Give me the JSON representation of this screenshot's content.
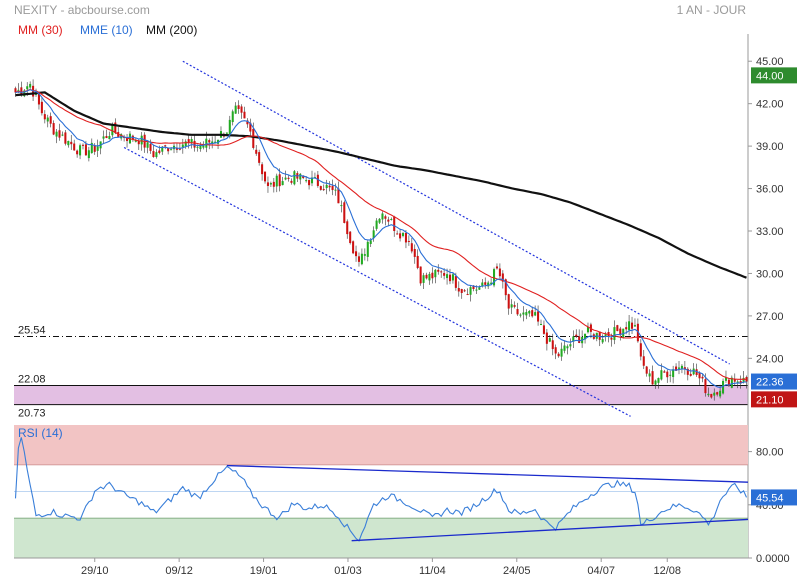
{
  "header": {
    "title": "NEXITY - abcbourse.com",
    "period": "1 AN - JOUR"
  },
  "legend": [
    {
      "label": "MM (30)",
      "color": "#e02020"
    },
    {
      "label": "MME (10)",
      "color": "#2a6fd6"
    },
    {
      "label": "MM (200)",
      "color": "#111111"
    }
  ],
  "colors": {
    "up": "#22aa22",
    "down": "#cc1111",
    "mm30": "#e02020",
    "mme10": "#2a6fd6",
    "mm200": "#111111",
    "channel": "#2233dd",
    "rsi_line": "#3a7fd9",
    "price_badge": "#2a6fd6",
    "upper_badge": "#2e8b2e",
    "lower_badge": "#c01515",
    "support_zone": "#e3bfe3",
    "rsi_over": "#f2c4c4",
    "rsi_under": "#cfe6cf"
  },
  "chart_data": [
    {
      "type": "candlestick",
      "title": "NEXITY",
      "x_tick_labels": [
        "29/10",
        "09/12",
        "19/01",
        "01/03",
        "11/04",
        "24/05",
        "04/07",
        "12/08"
      ],
      "y_tick_labels": [
        "45.00",
        "42.00",
        "39.00",
        "36.00",
        "33.00",
        "30.00",
        "27.00",
        "24.00"
      ],
      "ylim": [
        19.5,
        46.5
      ],
      "y_scale": "linear",
      "grid": false,
      "last_price": "22.36",
      "upper_badge": "44.00",
      "lower_badge": "21.10",
      "horizontal_levels": [
        {
          "label": "25.54",
          "value": 25.54,
          "style": "dash-dot"
        },
        {
          "label": "22.08",
          "value": 22.08,
          "style": "solid"
        },
        {
          "label": "20.73",
          "value": 20.73,
          "style": "solid"
        }
      ],
      "support_zone": [
        20.73,
        22.08
      ],
      "channel": {
        "upper": {
          "from": [
            0.23,
            45.0
          ],
          "to": [
            0.975,
            23.6
          ]
        },
        "lower": {
          "from": [
            0.15,
            38.9
          ],
          "to": [
            0.84,
            19.9
          ]
        }
      },
      "close_waypoints": [
        [
          0.0,
          42.8
        ],
        [
          0.02,
          43.4
        ],
        [
          0.035,
          41.5
        ],
        [
          0.05,
          40.3
        ],
        [
          0.07,
          39.4
        ],
        [
          0.09,
          38.6
        ],
        [
          0.11,
          38.9
        ],
        [
          0.13,
          40.1
        ],
        [
          0.15,
          39.7
        ],
        [
          0.17,
          39.5
        ],
        [
          0.19,
          38.4
        ],
        [
          0.21,
          39.0
        ],
        [
          0.23,
          39.2
        ],
        [
          0.25,
          39.0
        ],
        [
          0.27,
          39.4
        ],
        [
          0.29,
          40.2
        ],
        [
          0.3,
          41.5
        ],
        [
          0.31,
          41.0
        ],
        [
          0.32,
          40.2
        ],
        [
          0.33,
          38.5
        ],
        [
          0.345,
          36.0
        ],
        [
          0.36,
          36.6
        ],
        [
          0.38,
          36.8
        ],
        [
          0.4,
          36.6
        ],
        [
          0.42,
          36.3
        ],
        [
          0.44,
          35.5
        ],
        [
          0.455,
          33.0
        ],
        [
          0.47,
          30.5
        ],
        [
          0.48,
          32.0
        ],
        [
          0.5,
          34.5
        ],
        [
          0.52,
          33.2
        ],
        [
          0.54,
          32.3
        ],
        [
          0.555,
          29.6
        ],
        [
          0.57,
          29.8
        ],
        [
          0.59,
          30.1
        ],
        [
          0.61,
          28.9
        ],
        [
          0.64,
          29.0
        ],
        [
          0.66,
          30.3
        ],
        [
          0.675,
          27.5
        ],
        [
          0.69,
          27.1
        ],
        [
          0.71,
          26.9
        ],
        [
          0.725,
          25.6
        ],
        [
          0.74,
          24.1
        ],
        [
          0.76,
          25.1
        ],
        [
          0.78,
          25.8
        ],
        [
          0.8,
          25.6
        ],
        [
          0.82,
          25.8
        ],
        [
          0.84,
          26.5
        ],
        [
          0.85,
          26.0
        ],
        [
          0.855,
          23.8
        ],
        [
          0.87,
          22.4
        ],
        [
          0.89,
          23.0
        ],
        [
          0.91,
          23.5
        ],
        [
          0.93,
          23.0
        ],
        [
          0.95,
          21.4
        ],
        [
          0.965,
          22.1
        ],
        [
          0.98,
          22.6
        ],
        [
          1.0,
          22.36
        ]
      ],
      "mm200_waypoints": [
        [
          0.0,
          42.6
        ],
        [
          0.04,
          42.8
        ],
        [
          0.08,
          41.5
        ],
        [
          0.12,
          40.6
        ],
        [
          0.16,
          40.3
        ],
        [
          0.2,
          40.0
        ],
        [
          0.24,
          39.8
        ],
        [
          0.28,
          39.8
        ],
        [
          0.32,
          39.7
        ],
        [
          0.36,
          39.4
        ],
        [
          0.4,
          39.0
        ],
        [
          0.44,
          38.6
        ],
        [
          0.48,
          38.1
        ],
        [
          0.52,
          37.6
        ],
        [
          0.56,
          37.3
        ],
        [
          0.6,
          36.9
        ],
        [
          0.64,
          36.5
        ],
        [
          0.68,
          36.0
        ],
        [
          0.72,
          35.6
        ],
        [
          0.76,
          35.0
        ],
        [
          0.8,
          34.2
        ],
        [
          0.84,
          33.4
        ],
        [
          0.88,
          32.5
        ],
        [
          0.92,
          31.4
        ],
        [
          0.96,
          30.5
        ],
        [
          1.0,
          29.7
        ]
      ]
    },
    {
      "type": "line",
      "title": "RSI (14)",
      "y_tick_labels": [
        "80.00",
        "40.00",
        "0.0000"
      ],
      "ylim": [
        0,
        100
      ],
      "overbought": 70,
      "oversold": 30,
      "last_value": "45.54",
      "trendlines": {
        "upper": {
          "from": [
            0.29,
            69.5
          ],
          "to": [
            1.0,
            57.0
          ]
        },
        "lower": {
          "from": [
            0.46,
            13.0
          ],
          "to": [
            1.0,
            29.0
          ]
        }
      },
      "rsi_waypoints": [
        [
          0.0,
          45.0
        ],
        [
          0.006,
          98.0
        ],
        [
          0.018,
          60.0
        ],
        [
          0.028,
          32.0
        ],
        [
          0.05,
          35.0
        ],
        [
          0.065,
          32.0
        ],
        [
          0.09,
          30.0
        ],
        [
          0.11,
          52.0
        ],
        [
          0.13,
          55.0
        ],
        [
          0.15,
          47.0
        ],
        [
          0.17,
          42.0
        ],
        [
          0.19,
          34.0
        ],
        [
          0.21,
          43.0
        ],
        [
          0.23,
          53.0
        ],
        [
          0.25,
          45.0
        ],
        [
          0.27,
          58.0
        ],
        [
          0.29,
          68.0
        ],
        [
          0.31,
          60.0
        ],
        [
          0.32,
          50.0
        ],
        [
          0.34,
          38.0
        ],
        [
          0.36,
          30.0
        ],
        [
          0.38,
          41.0
        ],
        [
          0.4,
          37.0
        ],
        [
          0.42,
          40.0
        ],
        [
          0.44,
          33.0
        ],
        [
          0.455,
          22.0
        ],
        [
          0.47,
          14.0
        ],
        [
          0.49,
          40.0
        ],
        [
          0.51,
          47.0
        ],
        [
          0.53,
          43.0
        ],
        [
          0.55,
          37.0
        ],
        [
          0.57,
          30.0
        ],
        [
          0.59,
          36.0
        ],
        [
          0.61,
          34.0
        ],
        [
          0.63,
          40.0
        ],
        [
          0.66,
          52.0
        ],
        [
          0.675,
          36.0
        ],
        [
          0.69,
          33.0
        ],
        [
          0.71,
          37.0
        ],
        [
          0.725,
          27.0
        ],
        [
          0.74,
          23.0
        ],
        [
          0.76,
          36.0
        ],
        [
          0.78,
          45.0
        ],
        [
          0.8,
          53.0
        ],
        [
          0.82,
          56.0
        ],
        [
          0.84,
          54.0
        ],
        [
          0.85,
          48.0
        ],
        [
          0.855,
          24.0
        ],
        [
          0.87,
          30.0
        ],
        [
          0.89,
          37.0
        ],
        [
          0.91,
          40.0
        ],
        [
          0.93,
          36.0
        ],
        [
          0.95,
          25.0
        ],
        [
          0.965,
          45.0
        ],
        [
          0.985,
          55.0
        ],
        [
          1.0,
          45.54
        ]
      ]
    }
  ]
}
